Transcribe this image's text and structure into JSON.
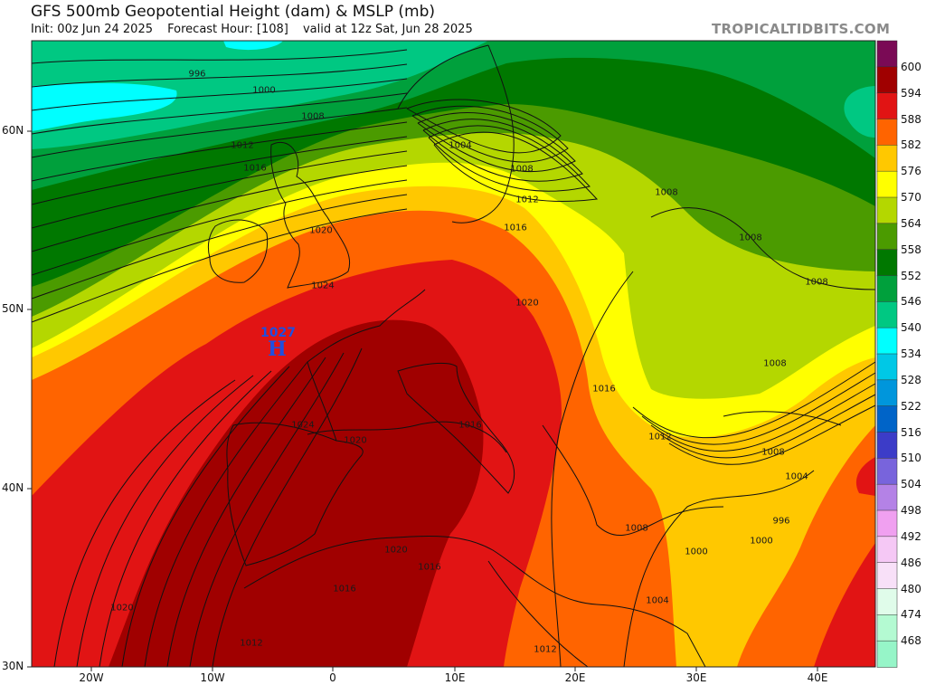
{
  "header": {
    "title": "GFS 500mb Geopotential Height (dam) & MSLP (mb)",
    "init": "Init: 00z Jun 24 2025",
    "forecast_hour": "Forecast Hour: [108]",
    "valid": "valid at 12z Sat, Jun 28 2025",
    "watermark": "TROPICALTIDBITS.COM"
  },
  "axes": {
    "lat_labels": [
      "60N",
      "50N",
      "40N",
      "30N"
    ],
    "lon_labels": [
      "20W",
      "10W",
      "0",
      "10E",
      "20E",
      "30E",
      "40E"
    ]
  },
  "colorbar": {
    "units": "dam",
    "labels": [
      "600",
      "594",
      "588",
      "582",
      "576",
      "570",
      "564",
      "558",
      "552",
      "546",
      "540",
      "534",
      "528",
      "522",
      "516",
      "510",
      "504",
      "498",
      "492",
      "486",
      "480",
      "474",
      "468"
    ],
    "colors": [
      "#7a0a55",
      "#a00000",
      "#e11414",
      "#ff6400",
      "#ffc800",
      "#ffff00",
      "#b4d700",
      "#4b9b00",
      "#007800",
      "#00a03c",
      "#00c882",
      "#00ffff",
      "#00c8e6",
      "#0096dc",
      "#0064c8",
      "#3c3cc8",
      "#7864dc",
      "#b482e6",
      "#f0a0f0",
      "#f5c8f5",
      "#f8e0f8",
      "#e0fcea",
      "#b4fad2",
      "#96f5c8"
    ]
  },
  "pressure_center": {
    "value": "1027",
    "letter": "H",
    "color": "#1f4fe0"
  },
  "isobar_labels": [
    "996",
    "1000",
    "1008",
    "1012",
    "1016",
    "1020",
    "1024",
    "1004",
    "1008",
    "1012",
    "1016",
    "1020",
    "1008",
    "1008",
    "1008",
    "1008",
    "1016",
    "1024",
    "1020",
    "1016",
    "1012",
    "1008",
    "1004",
    "996",
    "1000",
    "1008",
    "1000",
    "1020",
    "1016",
    "1016",
    "1020",
    "1004",
    "1012",
    "1012"
  ]
}
